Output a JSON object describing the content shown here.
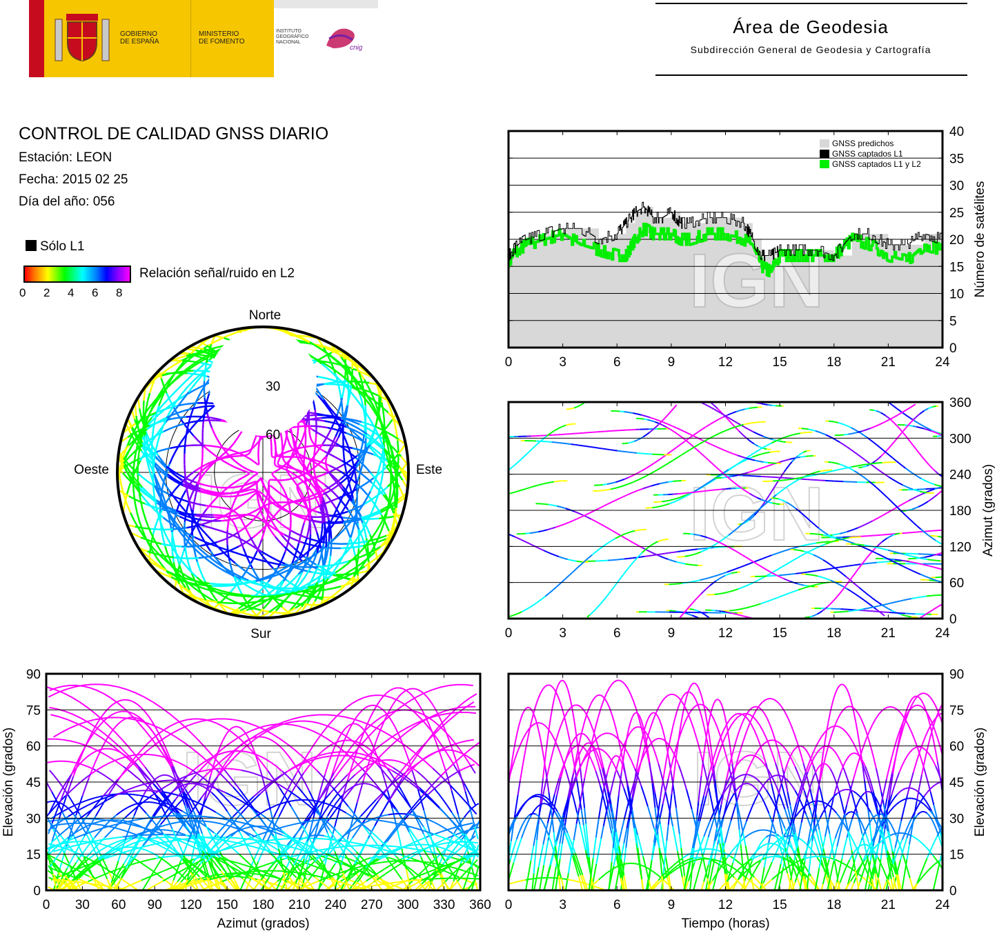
{
  "header": {
    "gov_line1": "GOBIERNO",
    "gov_line2": "DE ESPAÑA",
    "min_line1": "MINISTERIO",
    "min_line2": "DE FOMENTO",
    "inst_line1": "INSTITUTO",
    "inst_line2": "GEOGRÁFICO",
    "inst_line3": "NACIONAL",
    "cnig": "cnig",
    "area_title": "Área de Geodesia",
    "area_subtitle": "Subdirección General de Geodesia y Cartografía"
  },
  "info": {
    "title": "CONTROL DE CALIDAD GNSS DIARIO",
    "station": "Estación: LEON",
    "date": "Fecha: 2015 02 25",
    "doy": "Día del año: 056"
  },
  "legend": {
    "only_l1": "Sólo L1",
    "snr_label": "Relación señal/ruido en L2",
    "snr_ticks": [
      "0",
      "2",
      "4",
      "6",
      "8"
    ]
  },
  "watermark": "IGN",
  "colors": {
    "predicted": "#d8d8d8",
    "captured_l1": "#000000",
    "captured_l1_l2": "#00ee00",
    "snr_scale": [
      "#ff0000",
      "#ff8000",
      "#ffff00",
      "#00ff00",
      "#00ffff",
      "#0080ff",
      "#0000ff",
      "#8000ff",
      "#ff00ff"
    ]
  },
  "chart_data": [
    {
      "type": "area",
      "id": "satellites",
      "ylabel": "Número de satélites",
      "xlim": [
        0,
        24
      ],
      "ylim": [
        0,
        40
      ],
      "xticks": [
        "0",
        "3",
        "6",
        "9",
        "12",
        "15",
        "18",
        "21",
        "24"
      ],
      "yticks": [
        "0",
        "5",
        "10",
        "15",
        "20",
        "25",
        "30",
        "35",
        "40"
      ],
      "legend_position": "top-right",
      "series": [
        {
          "name": "GNSS predichos",
          "x": [
            0,
            0.5,
            1,
            2,
            3,
            4,
            5,
            6,
            6.5,
            7,
            7.5,
            8,
            8.5,
            9,
            9.5,
            10,
            11,
            12,
            13,
            13.5,
            14,
            14.5,
            15,
            16,
            17,
            18,
            19,
            20,
            21,
            22,
            23,
            24
          ],
          "values": [
            17,
            19,
            20,
            21,
            22,
            22,
            20,
            21,
            23,
            25,
            26,
            24,
            24,
            25,
            23,
            23,
            24,
            24,
            23,
            20,
            17,
            17,
            18,
            18,
            18,
            17,
            21,
            21,
            19,
            19,
            21,
            20
          ]
        },
        {
          "name": "GNSS captados L1",
          "x": [
            0,
            0.5,
            1,
            2,
            3,
            4,
            5,
            6,
            6.5,
            7,
            7.5,
            8,
            8.5,
            9,
            9.5,
            10,
            11,
            12,
            13,
            13.5,
            14,
            14.5,
            15,
            16,
            17,
            18,
            19,
            20,
            21,
            22,
            23,
            24
          ],
          "values": [
            17,
            19,
            20,
            21,
            22,
            22,
            20,
            21,
            23,
            25,
            26,
            24,
            24,
            25,
            23,
            23,
            24,
            24,
            23,
            20,
            17,
            17,
            18,
            18,
            18,
            17,
            21,
            21,
            19,
            19,
            21,
            20
          ]
        },
        {
          "name": "GNSS captados L1 y L2",
          "x": [
            0,
            0.5,
            1,
            2,
            3,
            4,
            5,
            6,
            6.5,
            7,
            7.5,
            8,
            8.5,
            9,
            9.5,
            10,
            11,
            12,
            13,
            13.5,
            14,
            14.5,
            15,
            16,
            17,
            18,
            19,
            20,
            21,
            22,
            23,
            24
          ],
          "values": [
            16,
            18,
            19,
            20,
            21,
            19,
            18,
            17,
            17,
            20,
            22,
            21,
            21,
            21,
            20,
            20,
            21,
            21,
            20,
            19,
            15,
            14,
            17,
            17,
            17,
            17,
            20,
            19,
            17,
            16,
            19,
            18
          ]
        }
      ]
    },
    {
      "type": "scatter",
      "id": "skyplot",
      "labels": {
        "north": "Norte",
        "south": "Sur",
        "east": "Este",
        "west": "Oeste"
      },
      "rings": [
        "30",
        "60"
      ]
    },
    {
      "type": "scatter",
      "id": "azimuth_time",
      "ylabel": "Azimut (grados)",
      "xlim": [
        0,
        24
      ],
      "ylim": [
        0,
        360
      ],
      "xticks": [
        "0",
        "3",
        "6",
        "9",
        "12",
        "15",
        "18",
        "21",
        "24"
      ],
      "yticks": [
        "0",
        "60",
        "120",
        "180",
        "240",
        "300",
        "360"
      ]
    },
    {
      "type": "scatter",
      "id": "elev_azimuth",
      "xlabel": "Azimut (grados)",
      "ylabel": "Elevación (grados)",
      "xlim": [
        0,
        360
      ],
      "ylim": [
        0,
        90
      ],
      "xticks": [
        "0",
        "30",
        "60",
        "90",
        "120",
        "150",
        "180",
        "210",
        "240",
        "270",
        "300",
        "330",
        "360"
      ],
      "yticks": [
        "0",
        "15",
        "30",
        "45",
        "60",
        "75",
        "90"
      ]
    },
    {
      "type": "scatter",
      "id": "elev_time",
      "xlabel": "Tiempo (horas)",
      "ylabel": "Elevación (grados)",
      "xlim": [
        0,
        24
      ],
      "ylim": [
        0,
        90
      ],
      "xticks": [
        "0",
        "3",
        "6",
        "9",
        "12",
        "15",
        "18",
        "21",
        "24"
      ],
      "yticks": [
        "0",
        "15",
        "30",
        "45",
        "60",
        "75",
        "90"
      ]
    }
  ]
}
